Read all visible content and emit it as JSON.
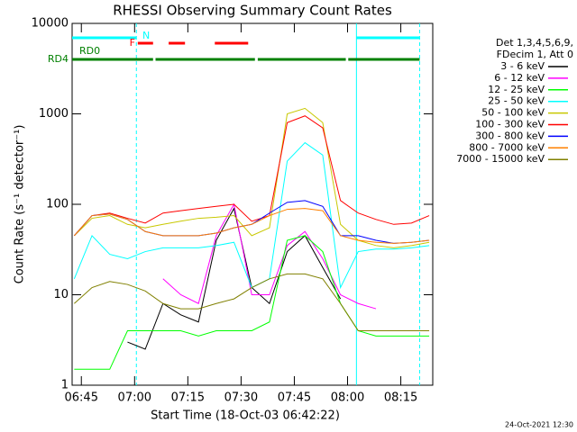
{
  "chart_data": {
    "type": "line",
    "title": "RHESSI Observing Summary Count Rates",
    "x_label": "Start Time (18-Oct-03 06:42:22)",
    "y_label": "Count Rate (s⁻¹ detector⁻¹)",
    "legend_header": [
      "Det 1,3,4,5,6,9,",
      "FDecim 1, Att 0"
    ],
    "footer": "24-Oct-2021 12:30",
    "log_y": true,
    "grid": false,
    "legend": "right",
    "xlim": [
      402.4,
      504
    ],
    "ylim": [
      1,
      10000
    ],
    "xticks": [
      {
        "value": 405,
        "label": "06:45"
      },
      {
        "value": 420,
        "label": "07:00"
      },
      {
        "value": 435,
        "label": "07:15"
      },
      {
        "value": 450,
        "label": "07:30"
      },
      {
        "value": 465,
        "label": "07:45"
      },
      {
        "value": 480,
        "label": "08:00"
      },
      {
        "value": 495,
        "label": "08:15"
      }
    ],
    "yticks": [
      1,
      10,
      100,
      1000,
      10000
    ],
    "x": [
      403,
      408,
      413,
      418,
      423,
      428,
      433,
      438,
      443,
      448,
      453,
      458,
      463,
      468,
      473,
      478,
      483,
      488,
      493,
      498,
      503
    ],
    "series": [
      {
        "name": "3 - 6 keV",
        "color": "#000000",
        "values": [
          null,
          null,
          null,
          3,
          2.5,
          8,
          6,
          5,
          40,
          90,
          12,
          8,
          30,
          45,
          20,
          9,
          null,
          null,
          null,
          null,
          null
        ]
      },
      {
        "name": "6 - 12 keV",
        "color": "#ff00ff",
        "values": [
          null,
          null,
          null,
          null,
          null,
          15,
          10,
          8,
          45,
          100,
          10,
          10,
          35,
          50,
          25,
          10,
          8,
          7,
          null,
          null,
          null
        ]
      },
      {
        "name": "12 - 25 keV",
        "color": "#00ff00",
        "values": [
          1.5,
          1.5,
          1.5,
          4,
          4,
          4,
          4,
          3.5,
          4,
          4,
          4,
          5,
          40,
          45,
          30,
          8,
          4,
          3.5,
          3.5,
          3.5,
          3.5
        ]
      },
      {
        "name": "25 - 50 keV",
        "color": "#00ffff",
        "values": [
          15,
          45,
          28,
          25,
          30,
          33,
          33,
          33,
          35,
          38,
          12,
          15,
          300,
          480,
          350,
          12,
          30,
          32,
          32,
          33,
          35
        ]
      },
      {
        "name": "50 - 100 keV",
        "color": "#c8c800",
        "values": [
          45,
          70,
          75,
          60,
          55,
          60,
          65,
          70,
          72,
          75,
          45,
          55,
          1000,
          1150,
          800,
          60,
          40,
          35,
          33,
          35,
          38
        ]
      },
      {
        "name": "100 - 300 keV",
        "color": "#ff0000",
        "values": [
          45,
          75,
          80,
          70,
          62,
          80,
          85,
          90,
          95,
          100,
          65,
          75,
          800,
          950,
          700,
          110,
          80,
          68,
          60,
          62,
          75
        ]
      },
      {
        "name": "300 - 800 keV",
        "color": "#0000ff",
        "values": [
          45,
          75,
          78,
          68,
          50,
          45,
          45,
          45,
          48,
          55,
          60,
          80,
          105,
          110,
          95,
          45,
          45,
          40,
          37,
          38,
          40
        ]
      },
      {
        "name": "800 - 7000 keV",
        "color": "#ff8000",
        "values": [
          45,
          75,
          78,
          68,
          50,
          45,
          45,
          45,
          48,
          55,
          60,
          75,
          88,
          90,
          85,
          45,
          40,
          38,
          37,
          38,
          40
        ]
      },
      {
        "name": "7000 - 15000 keV",
        "color": "#808000",
        "values": [
          8,
          12,
          14,
          13,
          11,
          8,
          7,
          7,
          8,
          9,
          12,
          15,
          17,
          17,
          15,
          8,
          4,
          4,
          4,
          4,
          4
        ]
      }
    ],
    "flags": [
      {
        "label": "N",
        "color": "#00ffff",
        "segments": [
          [
            402.4,
            420.5
          ],
          [
            482.5,
            500.3
          ]
        ]
      },
      {
        "label": "F",
        "color": "#ff0000",
        "segments": [
          [
            420.9,
            425.2
          ],
          [
            429.6,
            434.2
          ],
          [
            442.6,
            452
          ]
        ]
      },
      {
        "label": "RD0",
        "color": "#008000"
      },
      {
        "label": "RD4",
        "color": "#008000",
        "segments": [
          [
            402.4,
            425.2
          ],
          [
            425.9,
            453.9
          ],
          [
            454.7,
            479.5
          ],
          [
            480.2,
            500.3
          ]
        ]
      }
    ],
    "vlines": [
      {
        "x": 420.5,
        "color": "#00ffff",
        "dashed": true
      },
      {
        "x": 482.5,
        "color": "#00ffff",
        "dashed": false
      },
      {
        "x": 500.3,
        "color": "#00ffff",
        "dashed": true
      }
    ]
  }
}
